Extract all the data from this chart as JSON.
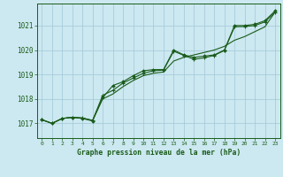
{
  "title": "Graphe pression niveau de la mer (hPa)",
  "bg_color": "#cce8f0",
  "grid_color": "#a0c8d8",
  "line_color": "#1a5c1a",
  "axis_color": "#1a5c1a",
  "x_ticks": [
    0,
    1,
    2,
    3,
    4,
    5,
    6,
    7,
    8,
    9,
    10,
    11,
    12,
    13,
    14,
    15,
    16,
    17,
    18,
    19,
    20,
    21,
    22,
    23
  ],
  "y_ticks": [
    1017,
    1018,
    1019,
    1020,
    1021
  ],
  "ylim": [
    1016.4,
    1021.9
  ],
  "xlim": [
    -0.5,
    23.5
  ],
  "series_diamond": [
    1017.15,
    1017.0,
    1017.2,
    1017.25,
    1017.2,
    1017.1,
    1018.05,
    1018.55,
    1018.7,
    1018.95,
    1019.15,
    1019.2,
    1019.2,
    1020.0,
    1019.8,
    1019.7,
    1019.75,
    1019.8,
    1020.0,
    1021.0,
    1021.0,
    1021.05,
    1021.2,
    1021.6
  ],
  "series_cross": [
    1017.15,
    1017.0,
    1017.2,
    1017.25,
    1017.22,
    1017.12,
    1018.15,
    1018.35,
    1018.65,
    1018.85,
    1019.05,
    1019.15,
    1019.18,
    1019.95,
    1019.78,
    1019.62,
    1019.68,
    1019.78,
    1019.98,
    1020.95,
    1020.96,
    1021.0,
    1021.15,
    1021.55
  ],
  "series_trend": [
    1017.15,
    1017.0,
    1017.2,
    1017.25,
    1017.22,
    1017.12,
    1018.0,
    1018.2,
    1018.5,
    1018.75,
    1018.95,
    1019.05,
    1019.1,
    1019.55,
    1019.7,
    1019.8,
    1019.9,
    1020.0,
    1020.15,
    1020.4,
    1020.55,
    1020.75,
    1020.95,
    1021.55
  ]
}
